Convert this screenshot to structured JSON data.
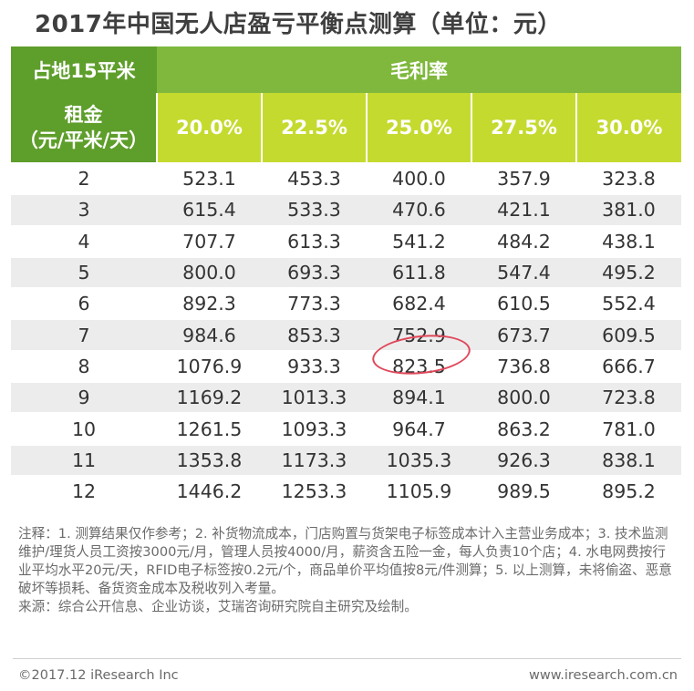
{
  "title": "2017年中国无人店盈亏平衡点测算（单位：元）",
  "table": {
    "corner_label": "占地15平米",
    "group_header": "毛利率",
    "rent_label_line1": "租金",
    "rent_label_line2": "（元/平米/天）",
    "margins": [
      "20.0%",
      "22.5%",
      "25.0%",
      "27.5%",
      "30.0%"
    ],
    "rows": [
      {
        "rent": "2",
        "values": [
          "523.1",
          "453.3",
          "400.0",
          "357.9",
          "323.8"
        ]
      },
      {
        "rent": "3",
        "values": [
          "615.4",
          "533.3",
          "470.6",
          "421.1",
          "381.0"
        ]
      },
      {
        "rent": "4",
        "values": [
          "707.7",
          "613.3",
          "541.2",
          "484.2",
          "438.1"
        ]
      },
      {
        "rent": "5",
        "values": [
          "800.0",
          "693.3",
          "611.8",
          "547.4",
          "495.2"
        ]
      },
      {
        "rent": "6",
        "values": [
          "892.3",
          "773.3",
          "682.4",
          "610.5",
          "552.4"
        ]
      },
      {
        "rent": "7",
        "values": [
          "984.6",
          "853.3",
          "752.9",
          "673.7",
          "609.5"
        ]
      },
      {
        "rent": "8",
        "values": [
          "1076.9",
          "933.3",
          "823.5",
          "736.8",
          "666.7"
        ]
      },
      {
        "rent": "9",
        "values": [
          "1169.2",
          "1013.3",
          "894.1",
          "800.0",
          "723.8"
        ]
      },
      {
        "rent": "10",
        "values": [
          "1261.5",
          "1093.3",
          "964.7",
          "863.2",
          "781.0"
        ]
      },
      {
        "rent": "11",
        "values": [
          "1353.8",
          "1173.3",
          "1035.3",
          "926.3",
          "838.1"
        ]
      },
      {
        "rent": "12",
        "values": [
          "1446.2",
          "1253.3",
          "1105.9",
          "989.5",
          "895.2"
        ]
      }
    ]
  },
  "notes": {
    "note_text": "注释：1. 测算结果仅作参考；2. 补货物流成本，门店购置与货架电子标签成本计入主营业务成本；3. 技术监测维护/理货人员工资按3000元/月，管理人员按4000/月，薪资含五险一金，每人负责10个店；4. 水电网费按行业平均水平20元/天，RFID电子标签按0.2元/个，商品单价平均值按8元/件测算；5. 以上测算，未将偷盗、恶意破坏等损耗、备货资金成本及税收列入考量。",
    "source_text": "来源：综合公开信息、企业访谈，艾瑞咨询研究院自主研究及绘制。"
  },
  "footer": {
    "copyright": "©2017.12 iResearch Inc",
    "website": "www.iresearch.com.cn"
  },
  "colors": {
    "header_dark_green": "#5e9e2b",
    "header_green": "#7fb83d",
    "header_lime": "#c5da2f",
    "row_gray": "#ececec",
    "circle_red": "#e0475a"
  }
}
